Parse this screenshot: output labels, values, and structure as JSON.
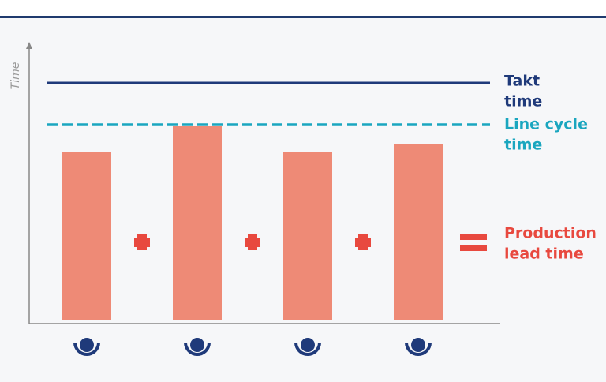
{
  "axis_label": "Time",
  "labels": {
    "takt_time": [
      "Takt",
      "time"
    ],
    "line_cycle_time": [
      "Line cycle",
      "time"
    ],
    "production_lead_time": [
      "Production",
      "lead time"
    ]
  }
}
